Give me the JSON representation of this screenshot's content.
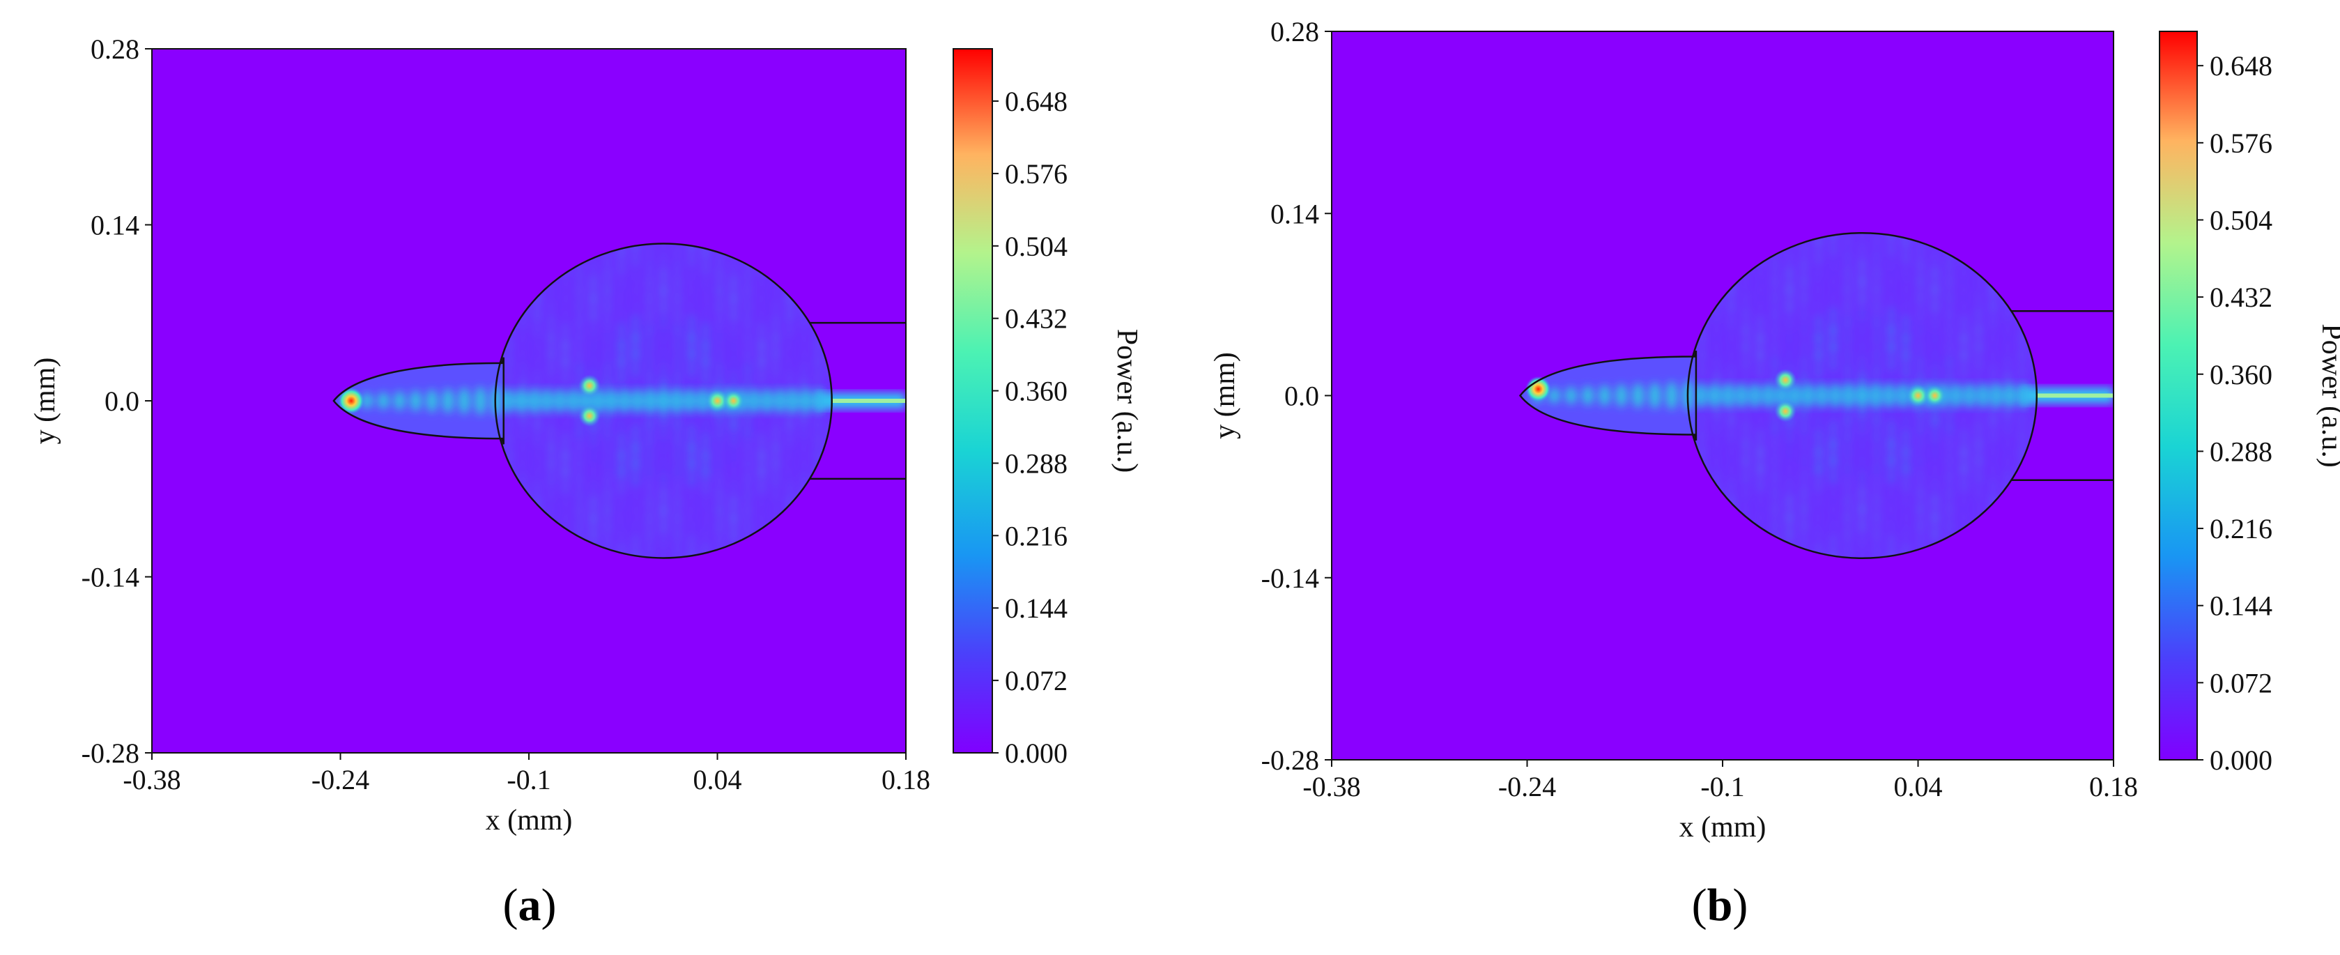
{
  "chart_data": [
    {
      "type": "heatmap",
      "panel_label": "a",
      "xlabel": "x (mm)",
      "ylabel": "y (mm)",
      "x_ticks": [
        "-0.38",
        "-0.24",
        "-0.1",
        "0.04",
        "0.18"
      ],
      "y_ticks": [
        "0.28",
        "0.14",
        "0.0",
        "-0.14",
        "-0.28"
      ],
      "xlim": [
        -0.38,
        0.18
      ],
      "ylim": [
        -0.28,
        0.28
      ],
      "colorbar": {
        "label": "Power (a.u.)",
        "colormap": "rainbow",
        "range": [
          0,
          0.7
        ],
        "ticks": [
          "0.000",
          "0.072",
          "0.144",
          "0.216",
          "0.288",
          "0.360",
          "0.432",
          "0.504",
          "0.576",
          "0.648"
        ]
      },
      "background_color": "#8a00ff",
      "structure": {
        "disk_center": [
          0.0,
          0.0
        ],
        "disk_radius": 0.125,
        "output_waveguide_halfwidth": 0.062,
        "taper_tip_x": -0.245,
        "taper_base_x": -0.12,
        "taper_halfwidth": 0.03
      },
      "hotspots": [
        {
          "x": -0.232,
          "y": 0.0,
          "power": 0.65
        },
        {
          "x": -0.055,
          "y": 0.012,
          "power": 0.42
        },
        {
          "x": -0.055,
          "y": -0.012,
          "power": 0.4
        },
        {
          "x": 0.04,
          "y": 0.0,
          "power": 0.45
        },
        {
          "x": 0.052,
          "y": 0.0,
          "power": 0.38
        }
      ]
    },
    {
      "type": "heatmap",
      "panel_label": "b",
      "xlabel": "x (mm)",
      "ylabel": "y (mm)",
      "x_ticks": [
        "-0.38",
        "-0.24",
        "-0.1",
        "0.04",
        "0.18"
      ],
      "y_ticks": [
        "0.28",
        "0.14",
        "0.0",
        "-0.14",
        "-0.28"
      ],
      "xlim": [
        -0.38,
        0.18
      ],
      "ylim": [
        -0.28,
        0.28
      ],
      "colorbar": {
        "label": "Power (a.u.)",
        "colormap": "rainbow",
        "range": [
          0,
          0.68
        ],
        "ticks": [
          "0.000",
          "0.072",
          "0.144",
          "0.216",
          "0.288",
          "0.360",
          "0.432",
          "0.504",
          "0.576",
          "0.648"
        ]
      },
      "background_color": "#8a00ff",
      "structure": {
        "disk_center": [
          0.0,
          0.0
        ],
        "disk_radius": 0.125,
        "output_waveguide_halfwidth": 0.065,
        "taper_tip_x": -0.245,
        "taper_base_x": -0.12,
        "taper_halfwidth": 0.03
      },
      "hotspots": [
        {
          "x": -0.232,
          "y": 0.005,
          "power": 0.6
        },
        {
          "x": -0.055,
          "y": 0.012,
          "power": 0.42
        },
        {
          "x": -0.055,
          "y": -0.012,
          "power": 0.4
        },
        {
          "x": 0.04,
          "y": 0.0,
          "power": 0.44
        },
        {
          "x": 0.052,
          "y": 0.0,
          "power": 0.37
        }
      ]
    }
  ]
}
